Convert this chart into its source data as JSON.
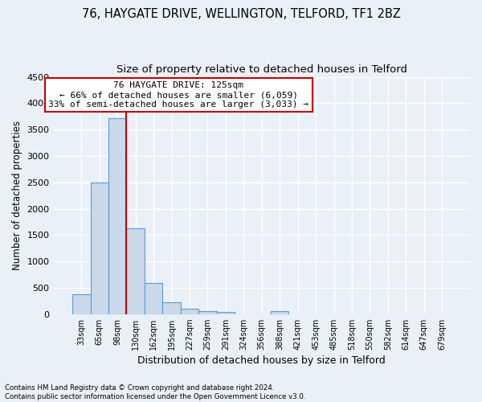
{
  "title1": "76, HAYGATE DRIVE, WELLINGTON, TELFORD, TF1 2BZ",
  "title2": "Size of property relative to detached houses in Telford",
  "xlabel": "Distribution of detached houses by size in Telford",
  "ylabel": "Number of detached properties",
  "footer1": "Contains HM Land Registry data © Crown copyright and database right 2024.",
  "footer2": "Contains public sector information licensed under the Open Government Licence v3.0.",
  "bin_labels": [
    "33sqm",
    "65sqm",
    "98sqm",
    "130sqm",
    "162sqm",
    "195sqm",
    "227sqm",
    "259sqm",
    "291sqm",
    "324sqm",
    "356sqm",
    "388sqm",
    "421sqm",
    "453sqm",
    "485sqm",
    "518sqm",
    "550sqm",
    "582sqm",
    "614sqm",
    "647sqm",
    "679sqm"
  ],
  "bar_values": [
    370,
    2500,
    3720,
    1630,
    590,
    225,
    100,
    60,
    45,
    0,
    0,
    55,
    0,
    0,
    0,
    0,
    0,
    0,
    0,
    0,
    0
  ],
  "bar_color": "#c9d9ea",
  "bar_edge_color": "#5b9bd5",
  "vline_x": 2.5,
  "vline_color": "#cc0000",
  "annotation_line1": "76 HAYGATE DRIVE: 125sqm",
  "annotation_line2": "← 66% of detached houses are smaller (6,059)",
  "annotation_line3": "33% of semi-detached houses are larger (3,033) →",
  "annotation_box_color": "#ffffff",
  "annotation_box_edge_color": "#cc0000",
  "ylim": [
    0,
    4500
  ],
  "yticks": [
    0,
    500,
    1000,
    1500,
    2000,
    2500,
    3000,
    3500,
    4000,
    4500
  ],
  "bg_color": "#eaf0f8",
  "plot_bg_color": "#eaf0f8",
  "grid_color": "#d0d8e8",
  "title1_fontsize": 10.5,
  "title2_fontsize": 9.5,
  "xlabel_fontsize": 9,
  "ylabel_fontsize": 8.5,
  "ann_fontsize": 8
}
